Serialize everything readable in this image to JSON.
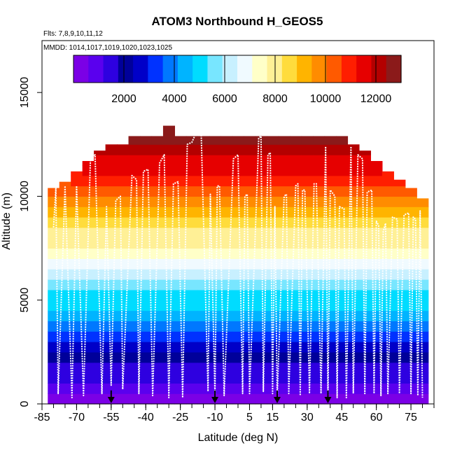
{
  "chart_data": {
    "type": "heatmap",
    "title": "ATOM3 Northbound H_GEOS5",
    "flights_label": "Flts: 7,8,9,10,11,12",
    "mmdd_label": "MMDD: 1014,1017,1019,1020,1023,1025",
    "xlabel": "Latitude (deg N)",
    "ylabel": "Altitude (m)",
    "xlim": [
      -85,
      85
    ],
    "ylim": [
      0,
      17500
    ],
    "x_ticks": [
      -85,
      -70,
      -55,
      -40,
      -25,
      -10,
      5,
      15,
      30,
      45,
      60,
      75
    ],
    "x_minor_step": 5,
    "y_ticks": [
      0,
      5000,
      10000,
      15000
    ],
    "colorbar": {
      "min": 0,
      "max": 13000,
      "ticks": [
        2000,
        4000,
        6000,
        8000,
        10000,
        12000
      ],
      "colors": [
        "#7b00e6",
        "#5a00ee",
        "#2e00e0",
        "#00009a",
        "#0000c8",
        "#0032ff",
        "#0078ff",
        "#00b4ff",
        "#00dcff",
        "#78e6ff",
        "#c8f0ff",
        "#f0faff",
        "#ffffc8",
        "#fff096",
        "#ffdc3c",
        "#ffb400",
        "#ff8c00",
        "#ff5a00",
        "#ff1e00",
        "#e60000",
        "#b40000",
        "#8b1a1a"
      ]
    },
    "arrows": [
      -55,
      -10,
      17,
      39
    ],
    "curtain": {
      "bin_width_deg": 5,
      "lat_start": -80,
      "lat_end": 80,
      "top_altitudes": [
        10400,
        10700,
        11200,
        11700,
        12200,
        12500,
        12500,
        12900,
        12900,
        12900,
        13400,
        12900,
        12900,
        12900,
        12900,
        12900,
        12900,
        12900,
        12900,
        12900,
        12900,
        12900,
        12900,
        12900,
        12900,
        12900,
        12500,
        12200,
        11700,
        11200,
        10800,
        10400,
        9900
      ]
    },
    "flight_track": {
      "points": [
        [
          -80,
          8500
        ],
        [
          -79,
          10400
        ],
        [
          -78,
          500
        ],
        [
          -75,
          10500
        ],
        [
          -72,
          300
        ],
        [
          -70,
          10500
        ],
        [
          -67,
          400
        ],
        [
          -64,
          11800
        ],
        [
          -62,
          12000
        ],
        [
          -59,
          500
        ],
        [
          -57,
          9500
        ],
        [
          -55,
          900
        ],
        [
          -53,
          9800
        ],
        [
          -51,
          10000
        ],
        [
          -50,
          700
        ],
        [
          -46,
          11000
        ],
        [
          -44,
          10800
        ],
        [
          -43,
          500
        ],
        [
          -41,
          11200
        ],
        [
          -39,
          11300
        ],
        [
          -37,
          400
        ],
        [
          -34,
          11600
        ],
        [
          -32,
          12000
        ],
        [
          -30,
          300
        ],
        [
          -28,
          10600
        ],
        [
          -26,
          10700
        ],
        [
          -24,
          300
        ],
        [
          -22,
          12500
        ],
        [
          -20,
          12600
        ],
        [
          -18,
          13100
        ],
        [
          -16,
          13200
        ],
        [
          -13,
          600
        ],
        [
          -12,
          10100
        ],
        [
          -10,
          400
        ],
        [
          -9,
          10500
        ],
        [
          -8,
          10500
        ],
        [
          -6,
          400
        ],
        [
          -2,
          11800
        ],
        [
          0,
          12000
        ],
        [
          2,
          500
        ],
        [
          3,
          10000
        ],
        [
          4,
          10100
        ],
        [
          5,
          500
        ],
        [
          9,
          12800
        ],
        [
          10,
          12900
        ],
        [
          11,
          600
        ],
        [
          13,
          12000
        ],
        [
          14,
          12100
        ],
        [
          15,
          500
        ],
        [
          16,
          9500
        ],
        [
          17,
          300
        ],
        [
          20,
          10000
        ],
        [
          21,
          10100
        ],
        [
          22,
          500
        ],
        [
          25,
          10500
        ],
        [
          26,
          10600
        ],
        [
          27,
          400
        ],
        [
          28,
          10300
        ],
        [
          29,
          10300
        ],
        [
          31,
          500
        ],
        [
          33,
          10600
        ],
        [
          34,
          10600
        ],
        [
          36,
          500
        ],
        [
          38,
          12400
        ],
        [
          39,
          200
        ],
        [
          40,
          10300
        ],
        [
          42,
          10000
        ],
        [
          43,
          300
        ],
        [
          44,
          9500
        ],
        [
          46,
          9400
        ],
        [
          47,
          300
        ],
        [
          49,
          12400
        ],
        [
          50,
          500
        ],
        [
          52,
          12000
        ],
        [
          54,
          11800
        ],
        [
          55,
          500
        ],
        [
          56,
          10200
        ],
        [
          58,
          10300
        ],
        [
          59,
          500
        ],
        [
          60,
          8800
        ],
        [
          61,
          8600
        ],
        [
          62,
          400
        ],
        [
          63,
          8300
        ],
        [
          64,
          8700
        ],
        [
          65,
          500
        ],
        [
          67,
          9000
        ],
        [
          69,
          8900
        ],
        [
          70,
          500
        ],
        [
          72,
          9100
        ],
        [
          74,
          9200
        ],
        [
          75,
          500
        ],
        [
          76,
          9000
        ],
        [
          77,
          8900
        ],
        [
          78,
          400
        ],
        [
          79,
          9300
        ],
        [
          80,
          300
        ]
      ]
    }
  }
}
